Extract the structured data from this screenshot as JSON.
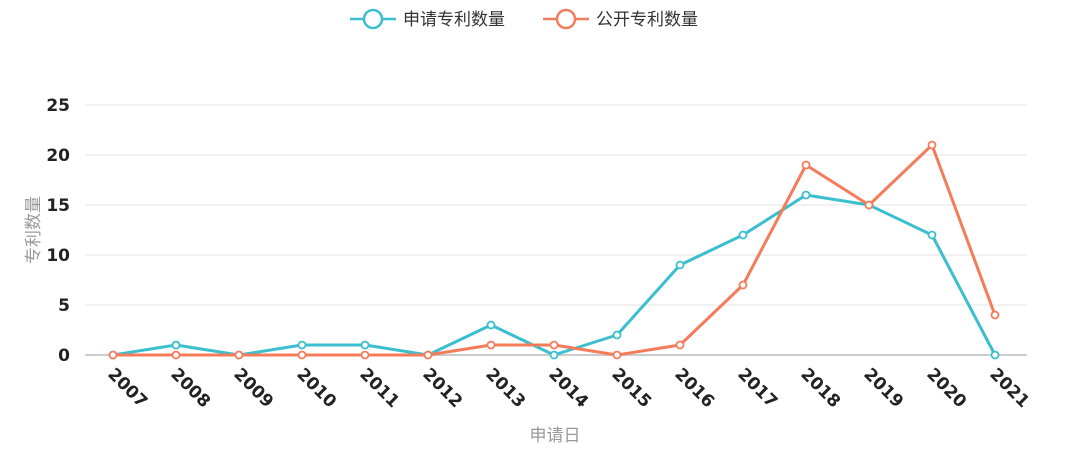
{
  "chart_data": {
    "type": "line",
    "categories": [
      "2007",
      "2008",
      "2009",
      "2010",
      "2011",
      "2012",
      "2013",
      "2014",
      "2015",
      "2016",
      "2017",
      "2018",
      "2019",
      "2020",
      "2021"
    ],
    "series": [
      {
        "name": "申请专利数量",
        "color": "#3bbfce",
        "values": [
          0,
          1,
          0,
          1,
          1,
          0,
          3,
          0,
          2,
          9,
          12,
          16,
          15,
          12,
          0
        ]
      },
      {
        "name": "公开专利数量",
        "color": "#f47c5a",
        "values": [
          0,
          0,
          0,
          0,
          0,
          0,
          1,
          1,
          0,
          1,
          7,
          19,
          15,
          21,
          4
        ]
      }
    ],
    "xlabel": "申请日",
    "ylabel": "专利数量",
    "ylim": [
      0,
      25
    ],
    "yticks": [
      0,
      5,
      10,
      15,
      20,
      25
    ],
    "grid": true,
    "legend_position": "top-center"
  }
}
